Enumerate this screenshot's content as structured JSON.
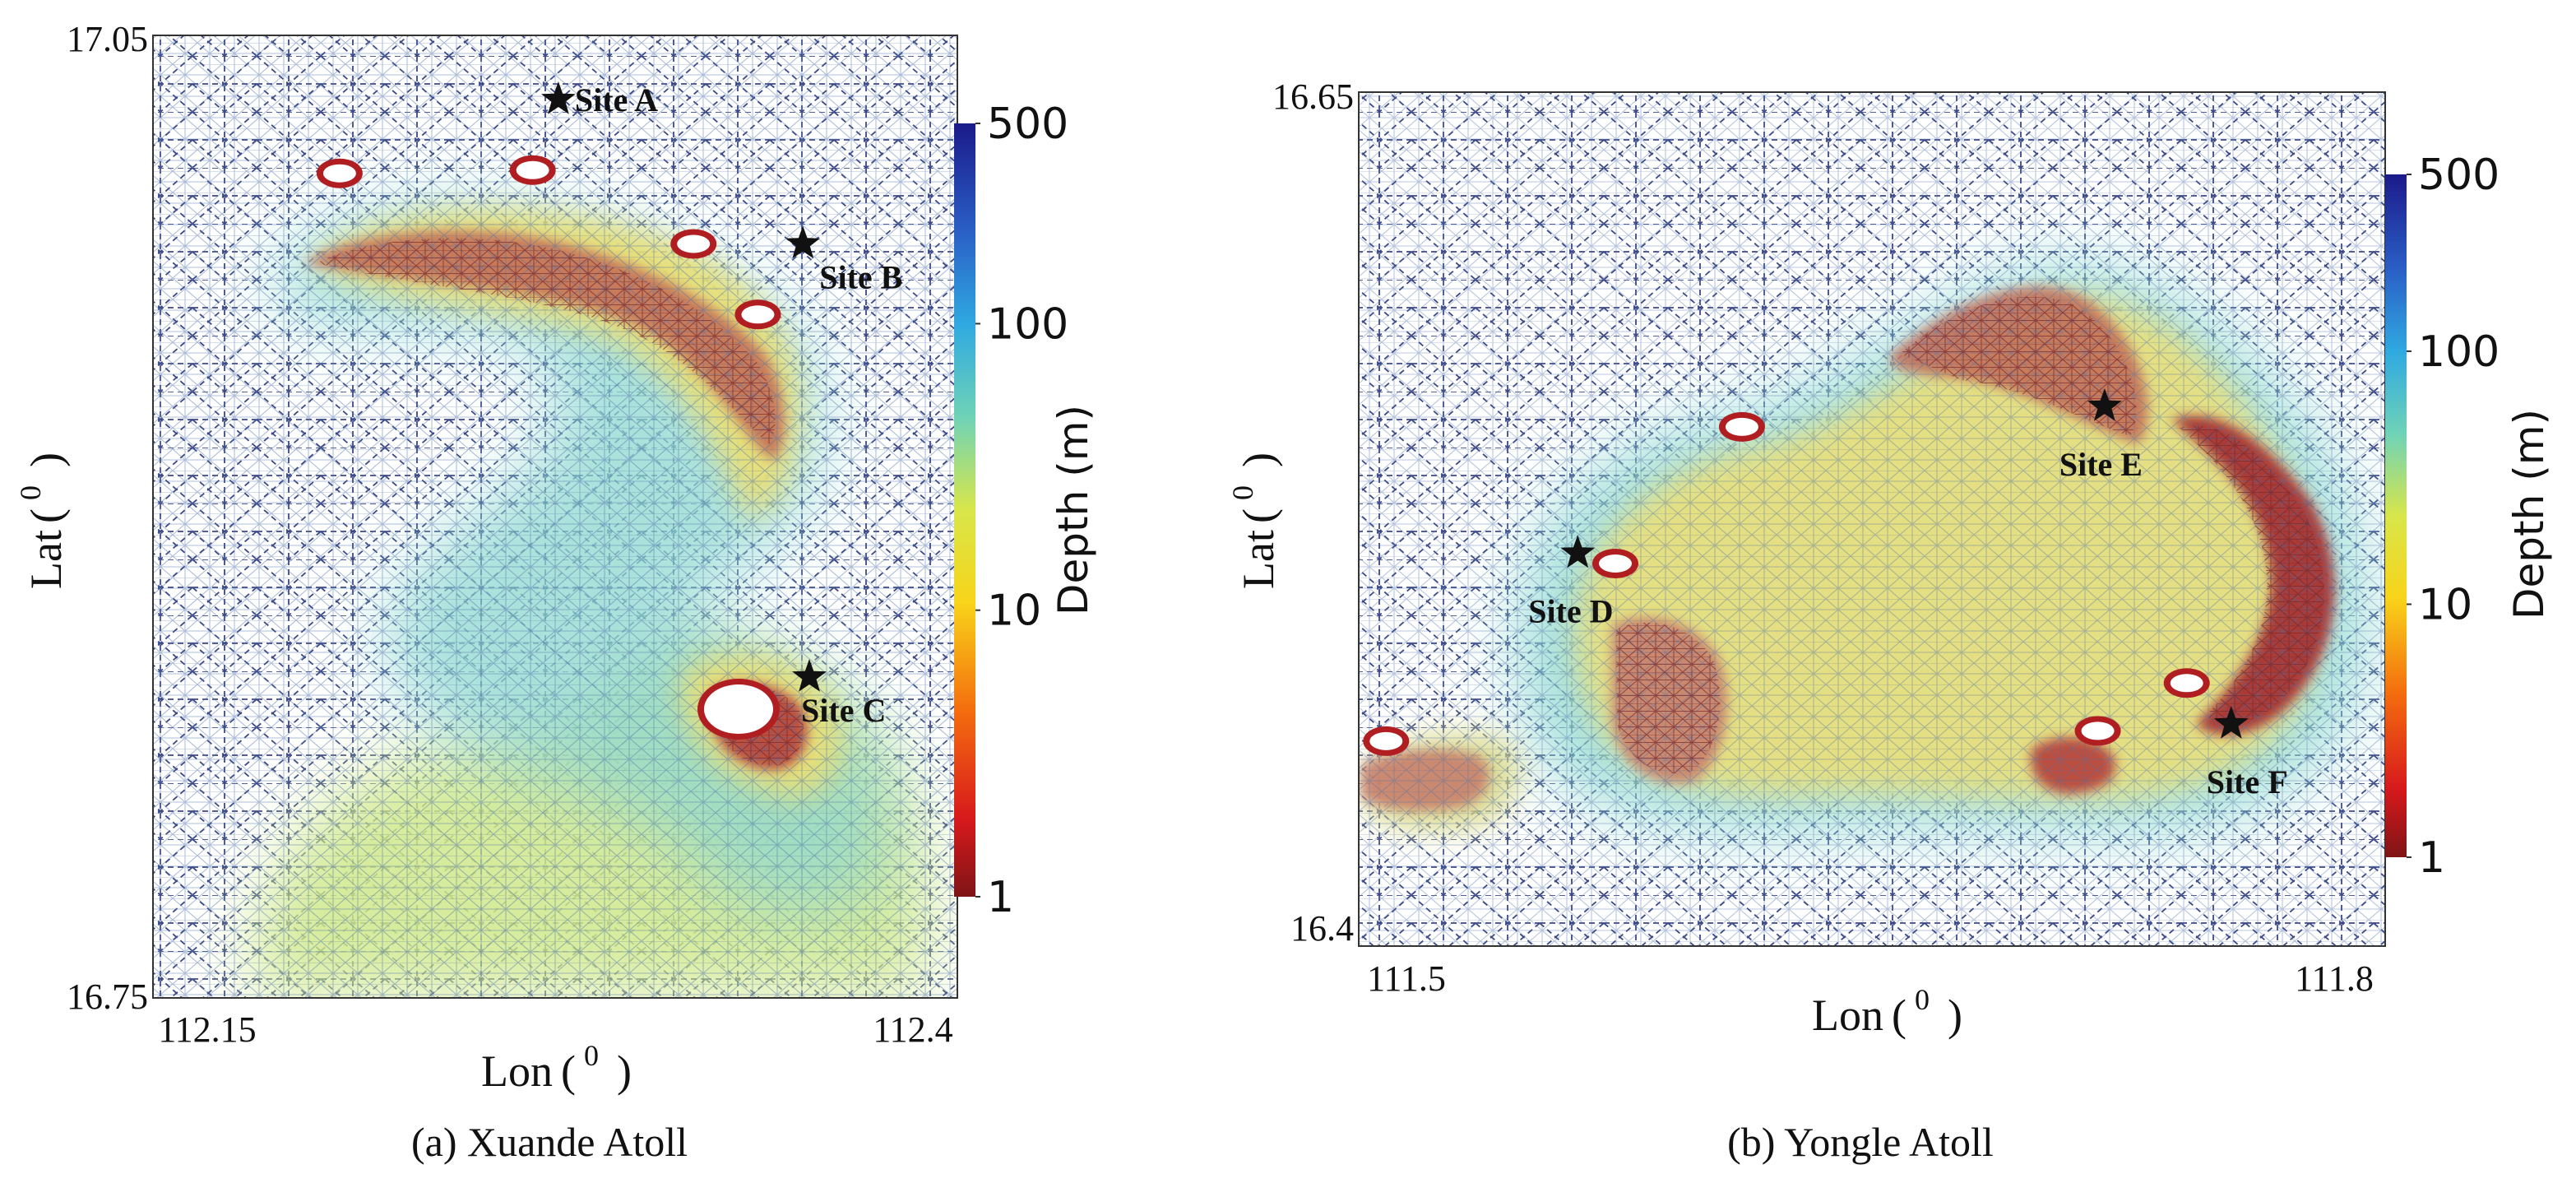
{
  "chart_data": [
    {
      "type": "mesh-bathymetry",
      "caption": "(a) Xuande Atoll",
      "xlabel": "Lon",
      "ylabel": "Lat",
      "unit_superscript": "0",
      "xlim": [
        112.15,
        112.4
      ],
      "ylim": [
        16.75,
        17.05
      ],
      "x_tick_labels": [
        "112.15",
        "112.4"
      ],
      "y_tick_labels": [
        "17.05",
        "16.75"
      ],
      "colorbar": {
        "label": "Depth (m)",
        "scale": "log",
        "range": [
          1,
          500
        ],
        "tick_values": [
          500,
          100,
          10,
          1
        ],
        "tick_labels": [
          "500",
          "100",
          "10",
          "1"
        ]
      },
      "sites": [
        {
          "name": "Site A",
          "lon": 112.276,
          "lat": 17.03
        },
        {
          "name": "Site B",
          "lon": 112.352,
          "lat": 16.985
        },
        {
          "name": "Site C",
          "lon": 112.354,
          "lat": 16.85
        }
      ],
      "islands": [
        {
          "lon": 112.208,
          "lat": 17.007
        },
        {
          "lon": 112.268,
          "lat": 17.008
        },
        {
          "lon": 112.318,
          "lat": 16.985
        },
        {
          "lon": 112.338,
          "lat": 16.963
        },
        {
          "lon": 112.332,
          "lat": 16.84
        }
      ]
    },
    {
      "type": "mesh-bathymetry",
      "caption": "(b) Yongle Atoll",
      "xlabel": "Lon",
      "ylabel": "Lat",
      "unit_superscript": "0",
      "xlim": [
        111.5,
        111.8
      ],
      "ylim": [
        16.4,
        16.65
      ],
      "x_tick_labels": [
        "111.5",
        "111.8"
      ],
      "y_tick_labels": [
        "16.65",
        "16.4"
      ],
      "colorbar": {
        "label": "Depth (m)",
        "scale": "log",
        "range": [
          1,
          500
        ],
        "tick_values": [
          500,
          100,
          10,
          1
        ],
        "tick_labels": [
          "500",
          "100",
          "10",
          "1"
        ]
      },
      "sites": [
        {
          "name": "Site D",
          "lon": 111.564,
          "lat": 16.515
        },
        {
          "name": "Site E",
          "lon": 111.718,
          "lat": 16.558
        },
        {
          "name": "Site F",
          "lon": 111.755,
          "lat": 16.465
        }
      ],
      "islands": [
        {
          "lon": 111.508,
          "lat": 16.46
        },
        {
          "lon": 111.575,
          "lat": 16.512
        },
        {
          "lon": 111.612,
          "lat": 16.552
        },
        {
          "lon": 111.716,
          "lat": 16.463
        },
        {
          "lon": 111.742,
          "lat": 16.477
        }
      ]
    }
  ]
}
